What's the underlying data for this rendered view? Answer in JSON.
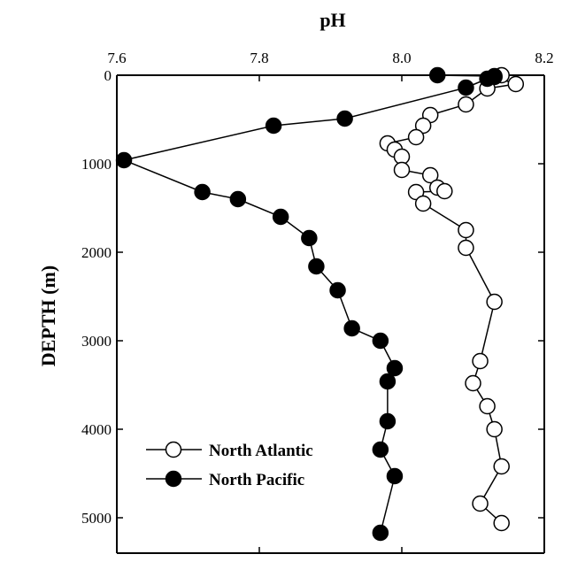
{
  "chart_data": {
    "type": "line",
    "title": "",
    "xlabel": "pH",
    "ylabel": "DEPTH (m)",
    "xlim": [
      7.6,
      8.2
    ],
    "ylim": [
      0,
      5400
    ],
    "y_inverted": true,
    "x_axis_position": "top",
    "x_ticks": [
      7.6,
      7.8,
      8.0,
      8.2
    ],
    "x_tick_labels": [
      "7.6",
      "7.8",
      "8.0",
      "8.2"
    ],
    "y_ticks": [
      0,
      1000,
      2000,
      3000,
      4000,
      5000
    ],
    "y_tick_labels": [
      "0",
      "1000",
      "2000",
      "3000",
      "4000",
      "5000"
    ],
    "grid": false,
    "legend_position": "bottom-left",
    "series": [
      {
        "name": "North Atlantic",
        "marker": "open-circle",
        "color": "#000000",
        "points": [
          {
            "x": 8.14,
            "y": 0
          },
          {
            "x": 8.13,
            "y": 20
          },
          {
            "x": 8.16,
            "y": 100
          },
          {
            "x": 8.12,
            "y": 150
          },
          {
            "x": 8.09,
            "y": 330
          },
          {
            "x": 8.04,
            "y": 450
          },
          {
            "x": 8.03,
            "y": 570
          },
          {
            "x": 8.02,
            "y": 700
          },
          {
            "x": 7.98,
            "y": 770
          },
          {
            "x": 7.99,
            "y": 840
          },
          {
            "x": 8.0,
            "y": 920
          },
          {
            "x": 8.0,
            "y": 1070
          },
          {
            "x": 8.04,
            "y": 1130
          },
          {
            "x": 8.05,
            "y": 1270
          },
          {
            "x": 8.06,
            "y": 1310
          },
          {
            "x": 8.02,
            "y": 1320
          },
          {
            "x": 8.03,
            "y": 1450
          },
          {
            "x": 8.09,
            "y": 1750
          },
          {
            "x": 8.09,
            "y": 1950
          },
          {
            "x": 8.13,
            "y": 2560
          },
          {
            "x": 8.11,
            "y": 3230
          },
          {
            "x": 8.1,
            "y": 3480
          },
          {
            "x": 8.12,
            "y": 3740
          },
          {
            "x": 8.13,
            "y": 4000
          },
          {
            "x": 8.14,
            "y": 4420
          },
          {
            "x": 8.11,
            "y": 4840
          },
          {
            "x": 8.14,
            "y": 5060
          }
        ]
      },
      {
        "name": "North Pacific",
        "marker": "filled-circle",
        "color": "#000000",
        "points": [
          {
            "x": 8.05,
            "y": 0
          },
          {
            "x": 8.13,
            "y": 10
          },
          {
            "x": 8.12,
            "y": 40
          },
          {
            "x": 8.09,
            "y": 140
          },
          {
            "x": 7.92,
            "y": 490
          },
          {
            "x": 7.82,
            "y": 570
          },
          {
            "x": 7.61,
            "y": 960
          },
          {
            "x": 7.72,
            "y": 1320
          },
          {
            "x": 7.77,
            "y": 1400
          },
          {
            "x": 7.83,
            "y": 1600
          },
          {
            "x": 7.87,
            "y": 1840
          },
          {
            "x": 7.88,
            "y": 2160
          },
          {
            "x": 7.91,
            "y": 2430
          },
          {
            "x": 7.93,
            "y": 2860
          },
          {
            "x": 7.97,
            "y": 3000
          },
          {
            "x": 7.99,
            "y": 3310
          },
          {
            "x": 7.98,
            "y": 3460
          },
          {
            "x": 7.98,
            "y": 3910
          },
          {
            "x": 7.97,
            "y": 4230
          },
          {
            "x": 7.99,
            "y": 4530
          },
          {
            "x": 7.97,
            "y": 5170
          }
        ]
      }
    ]
  }
}
